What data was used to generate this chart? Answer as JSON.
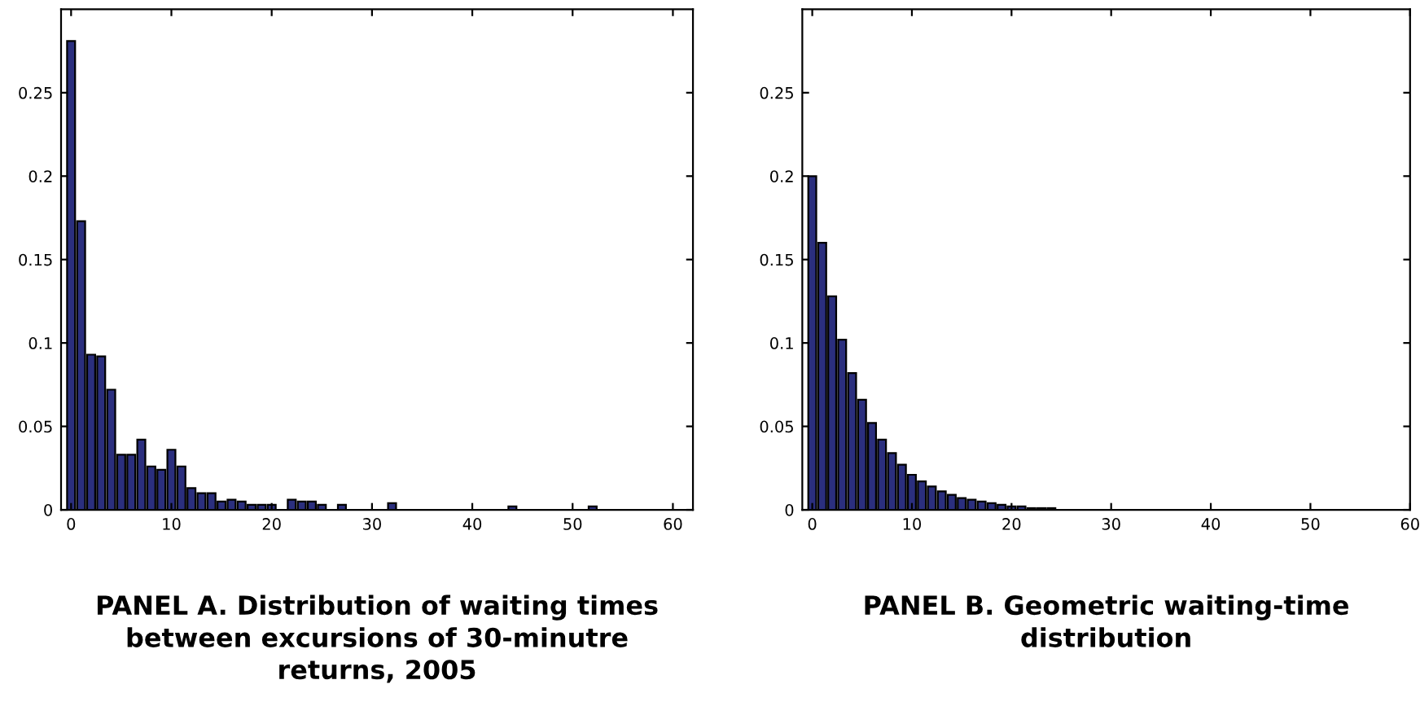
{
  "chart_data": [
    {
      "type": "bar",
      "title": "PANEL A. Distribution of waiting times\nbetween excursions of 30-minutre\nreturns, 2005",
      "x": [
        0,
        1,
        2,
        3,
        4,
        5,
        6,
        7,
        8,
        9,
        10,
        11,
        12,
        13,
        14,
        15,
        16,
        17,
        18,
        19,
        20,
        21,
        22,
        23,
        24,
        25,
        26,
        27,
        28,
        29,
        30,
        31,
        32,
        33,
        34,
        35,
        36,
        37,
        38,
        39,
        40,
        41,
        42,
        43,
        44,
        45,
        46,
        47,
        48,
        49,
        50,
        51,
        52
      ],
      "values": [
        0.281,
        0.173,
        0.093,
        0.092,
        0.072,
        0.033,
        0.033,
        0.042,
        0.026,
        0.024,
        0.036,
        0.026,
        0.013,
        0.01,
        0.01,
        0.005,
        0.006,
        0.005,
        0.003,
        0.003,
        0.003,
        0,
        0.006,
        0.005,
        0.005,
        0.003,
        0,
        0.003,
        0,
        0,
        0,
        0,
        0.004,
        0,
        0,
        0,
        0,
        0,
        0,
        0,
        0,
        0,
        0,
        0,
        0.002,
        0,
        0,
        0,
        0,
        0,
        0,
        0,
        0.002
      ],
      "color": "#2b2f7e",
      "xlim": [
        -1,
        62
      ],
      "ylim": [
        0,
        0.3
      ],
      "xticks": [
        0,
        10,
        20,
        30,
        40,
        50,
        60
      ],
      "yticks": [
        0,
        0.05,
        0.1,
        0.15,
        0.2,
        0.25
      ],
      "grid": false
    },
    {
      "type": "bar",
      "title": "PANEL B. Geometric waiting-time\ndistribution",
      "x": [
        0,
        1,
        2,
        3,
        4,
        5,
        6,
        7,
        8,
        9,
        10,
        11,
        12,
        13,
        14,
        15,
        16,
        17,
        18,
        19,
        20,
        21,
        22,
        23,
        24
      ],
      "values": [
        0.2,
        0.16,
        0.128,
        0.102,
        0.082,
        0.066,
        0.052,
        0.042,
        0.034,
        0.027,
        0.021,
        0.017,
        0.014,
        0.011,
        0.009,
        0.007,
        0.006,
        0.005,
        0.004,
        0.003,
        0.002,
        0.002,
        0.001,
        0.001,
        0.001
      ],
      "color": "#2b2f7e",
      "xlim": [
        -1,
        60
      ],
      "ylim": [
        0,
        0.3
      ],
      "xticks": [
        0,
        10,
        20,
        30,
        40,
        50,
        60
      ],
      "yticks": [
        0,
        0.05,
        0.1,
        0.15,
        0.2,
        0.25
      ],
      "grid": false
    }
  ]
}
